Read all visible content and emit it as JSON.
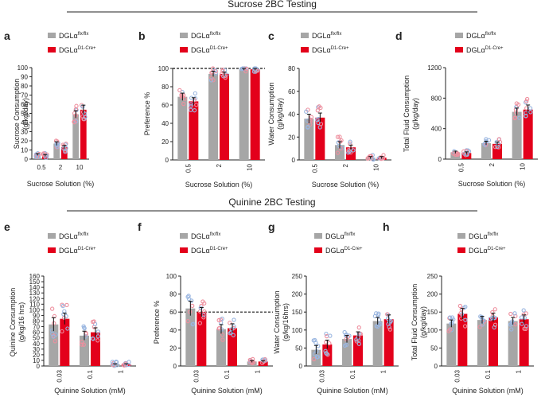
{
  "headers": [
    "Sucrose 2BC Testing",
    "Quinine 2BC Testing"
  ],
  "colors": {
    "wt": "#a6a6a6",
    "cre": "#e3001b",
    "dot_blue": "#9ab6e0",
    "dot_pink": "#ee8f9e",
    "axis": "#222222"
  },
  "legend": {
    "wt_base": "DGLα",
    "wt_sup": "flx/flx",
    "cre_base": "DGLα",
    "cre_sup": "D1-Cre+"
  },
  "chart_data": [
    {
      "panel": "a",
      "type": "bar",
      "title": "",
      "ylabel": "Sucrose Consumption",
      "ylabel2": "(g/kg/day)",
      "xlabel": "Sucrose Solution (%)",
      "categories": [
        "0.5",
        "2",
        "10"
      ],
      "ylim": [
        0,
        100
      ],
      "yticks": [
        "0",
        "10",
        "20",
        "30",
        "40",
        "50",
        "60",
        "70",
        "80",
        "90",
        "100"
      ],
      "series": [
        {
          "name": "DGLα flx/flx",
          "values": [
            5,
            17,
            49
          ],
          "errors": [
            1,
            2,
            4
          ]
        },
        {
          "name": "DGLα D1-Cre+",
          "values": [
            4,
            13,
            54
          ],
          "errors": [
            1,
            2,
            5
          ]
        }
      ],
      "dashed_line": null,
      "xrot": false
    },
    {
      "panel": "b",
      "type": "bar",
      "title": "",
      "ylabel": "Preference %",
      "ylabel2": "",
      "xlabel": "Sucrose Solution (%)",
      "categories": [
        "0.5",
        "2",
        "10"
      ],
      "ylim": [
        0,
        100
      ],
      "yticks": [
        "0",
        "20",
        "40",
        "60",
        "80",
        "100"
      ],
      "series": [
        {
          "name": "DGLα flx/flx",
          "values": [
            69,
            94,
            99
          ],
          "errors": [
            4,
            3,
            1
          ]
        },
        {
          "name": "DGLα D1-Cre+",
          "values": [
            64,
            94,
            99
          ],
          "errors": [
            4,
            2,
            1
          ]
        }
      ],
      "dashed_line": 100,
      "xrot": true
    },
    {
      "panel": "c",
      "type": "bar",
      "title": "",
      "ylabel": "Water Consumption",
      "ylabel2": "(g/kg/day)",
      "xlabel": "Sucrose Solution (%)",
      "categories": [
        "0.5",
        "2",
        "10"
      ],
      "ylim": [
        0,
        80
      ],
      "yticks": [
        "0",
        "20",
        "40",
        "60",
        "80"
      ],
      "series": [
        {
          "name": "DGLα flx/flx",
          "values": [
            36,
            13,
            2
          ],
          "errors": [
            4,
            3,
            1
          ]
        },
        {
          "name": "DGLα D1-Cre+",
          "values": [
            37,
            11,
            2
          ],
          "errors": [
            4,
            2,
            1
          ]
        }
      ],
      "dashed_line": null,
      "xrot": true
    },
    {
      "panel": "d",
      "type": "bar",
      "title": "",
      "ylabel": "Total Fluid Consumption",
      "ylabel2": "(g/kg/day)",
      "xlabel": "Sucrose Solution (%)",
      "categories": [
        "0.5",
        "2",
        "10"
      ],
      "ylim": [
        0,
        1200
      ],
      "yticks": [
        "0",
        "400",
        "800",
        "1200"
      ],
      "series": [
        {
          "name": "DGLα flx/flx",
          "values": [
            90,
            210,
            620
          ],
          "errors": [
            15,
            25,
            50
          ]
        },
        {
          "name": "DGLα D1-Cre+",
          "values": [
            80,
            200,
            650
          ],
          "errors": [
            15,
            25,
            60
          ]
        }
      ],
      "dashed_line": null,
      "xrot": true
    },
    {
      "panel": "e",
      "type": "bar",
      "title": "",
      "ylabel": "Quinine Consumption",
      "ylabel2": "(g/kg/16 hrs)",
      "xlabel": "Quinine Solution (mM)",
      "categories": [
        "0.03",
        "0.1",
        "1"
      ],
      "ylim": [
        0,
        160
      ],
      "yticks": [
        "0",
        "10",
        "20",
        "30",
        "40",
        "50",
        "60",
        "70",
        "80",
        "90",
        "100",
        "110",
        "120",
        "130",
        "140",
        "150",
        "160"
      ],
      "series": [
        {
          "name": "DGLα flx/flx",
          "values": [
            74,
            54,
            3
          ],
          "errors": [
            12,
            8,
            1
          ]
        },
        {
          "name": "DGLα D1-Cre+",
          "values": [
            84,
            60,
            3
          ],
          "errors": [
            10,
            8,
            1
          ]
        }
      ],
      "dashed_line": null,
      "xrot": true
    },
    {
      "panel": "f",
      "type": "bar",
      "title": "",
      "ylabel": "Preference %",
      "ylabel2": "",
      "xlabel": "Quinine Solution (mM)",
      "categories": [
        "0.03",
        "0.1",
        "1"
      ],
      "ylim": [
        0,
        100
      ],
      "yticks": [
        "0",
        "20",
        "40",
        "60",
        "80",
        "100"
      ],
      "series": [
        {
          "name": "DGLα flx/flx",
          "values": [
            64,
            41,
            5
          ],
          "errors": [
            8,
            5,
            1
          ]
        },
        {
          "name": "DGLα D1-Cre+",
          "values": [
            60,
            42,
            5
          ],
          "errors": [
            5,
            5,
            1
          ]
        }
      ],
      "dashed_line": 60,
      "xrot": true
    },
    {
      "panel": "g",
      "type": "bar",
      "title": "",
      "ylabel": "Water Consumption",
      "ylabel2": "(g/kg/16hrs)",
      "xlabel": "Quinine Solution (mM)",
      "categories": [
        "0.03",
        "0.1",
        "1"
      ],
      "ylim": [
        0,
        250
      ],
      "yticks": [
        "0",
        "50",
        "100",
        "150",
        "200",
        "250"
      ],
      "series": [
        {
          "name": "DGLα flx/flx",
          "values": [
            45,
            75,
            125
          ],
          "errors": [
            12,
            10,
            10
          ]
        },
        {
          "name": "DGLα D1-Cre+",
          "values": [
            60,
            85,
            130
          ],
          "errors": [
            12,
            10,
            12
          ]
        }
      ],
      "dashed_line": null,
      "xrot": true
    },
    {
      "panel": "h",
      "type": "bar",
      "title": "",
      "ylabel": "Total Fluid Consumption",
      "ylabel2": "(g/kg/day)",
      "xlabel": "Quinine Solution (mM)",
      "categories": [
        "0.03",
        "0.1",
        "1"
      ],
      "ylim": [
        0,
        250
      ],
      "yticks": [
        "0",
        "50",
        "100",
        "150",
        "200",
        "250"
      ],
      "series": [
        {
          "name": "DGLα flx/flx",
          "values": [
            118,
            128,
            125
          ],
          "errors": [
            10,
            10,
            10
          ]
        },
        {
          "name": "DGLα D1-Cre+",
          "values": [
            145,
            135,
            130
          ],
          "errors": [
            15,
            12,
            12
          ]
        }
      ],
      "dashed_line": null,
      "xrot": true
    }
  ]
}
